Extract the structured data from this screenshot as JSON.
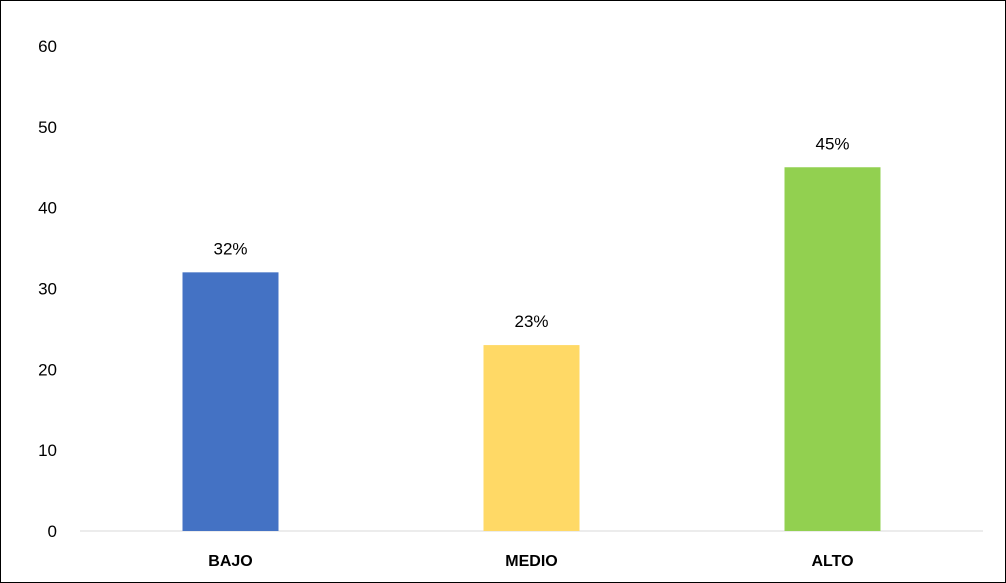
{
  "chart_data": {
    "type": "bar",
    "title": "",
    "xlabel": "",
    "ylabel": "",
    "categories": [
      "BAJO",
      "MEDIO",
      "ALTO"
    ],
    "values": [
      32,
      23,
      45
    ],
    "data_labels": [
      "32%",
      "23%",
      "45%"
    ],
    "colors": [
      "#4472C4",
      "#FFD966",
      "#92D050"
    ],
    "ylim": [
      0,
      60
    ],
    "yticks": [
      0,
      10,
      20,
      30,
      40,
      50,
      60
    ],
    "grid": false,
    "legend": "none"
  }
}
